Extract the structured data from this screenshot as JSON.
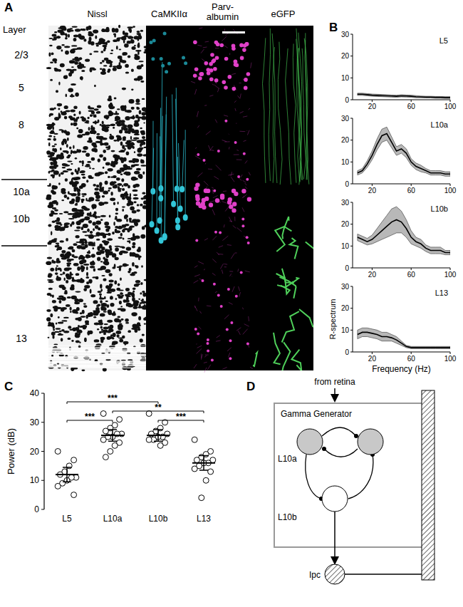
{
  "panel_labels": [
    "A",
    "B",
    "C",
    "D"
  ],
  "histology": {
    "layer_heading": "Layer",
    "stains": [
      "Nissl",
      "CaMKIIα",
      [
        "Parv-",
        "albumin"
      ],
      "eGFP"
    ],
    "layers": [
      "2/3",
      "5",
      "8",
      "10a",
      "10b",
      "13"
    ]
  },
  "chart_data": [
    {
      "type": "line",
      "title": "L5",
      "x": [
        5,
        10,
        15,
        20,
        25,
        30,
        35,
        40,
        45,
        50,
        55,
        60,
        65,
        70,
        75,
        80,
        85,
        90,
        95,
        100
      ],
      "series": [
        {
          "color": "#000000",
          "values": [
            2.5,
            2.5,
            2.3,
            2.1,
            2.0,
            1.9,
            1.8,
            1.7,
            1.6,
            1.8,
            1.7,
            1.6,
            1.4,
            1.3,
            1.2,
            1.2,
            1.1,
            1.1,
            1.0,
            1.0
          ],
          "errors": [
            0.5,
            0.5,
            0.5,
            0.5,
            0.5,
            0.5,
            0.5,
            0.5,
            0.5,
            0.5,
            0.5,
            0.5,
            0.5,
            0.4,
            0.4,
            0.4,
            0.4,
            0.4,
            0.4,
            0.4
          ]
        }
      ],
      "xlim": [
        0,
        100
      ],
      "xticks": [
        20,
        60,
        100
      ],
      "ylim": [
        0,
        30
      ],
      "yticks": [
        0,
        10,
        20,
        30
      ]
    },
    {
      "type": "line",
      "title": "L10a",
      "x": [
        5,
        10,
        15,
        20,
        25,
        30,
        35,
        40,
        45,
        50,
        55,
        60,
        65,
        70,
        75,
        80,
        85,
        90,
        95,
        100
      ],
      "series": [
        {
          "color": "#000000",
          "values": [
            5,
            6,
            9,
            13,
            18,
            22,
            23,
            19,
            15,
            16,
            14,
            10,
            8,
            7,
            6,
            5,
            5,
            5,
            4.5,
            4.5
          ],
          "errors": [
            1,
            1,
            1.5,
            2,
            2.5,
            3,
            3,
            2.5,
            2,
            2,
            2,
            1.5,
            1.5,
            1.5,
            1,
            1,
            1,
            1,
            1,
            1
          ]
        }
      ],
      "xlim": [
        0,
        100
      ],
      "xticks": [
        20,
        60,
        100
      ],
      "ylim": [
        0,
        30
      ],
      "yticks": [
        0,
        10,
        20,
        30
      ]
    },
    {
      "type": "line",
      "title": "L10b",
      "x": [
        5,
        10,
        15,
        20,
        25,
        30,
        35,
        40,
        45,
        50,
        55,
        60,
        65,
        70,
        75,
        80,
        85,
        90,
        95,
        100
      ],
      "series": [
        {
          "color": "#000000",
          "values": [
            14,
            13,
            12,
            13,
            15,
            17,
            19,
            21,
            22,
            21,
            18,
            14,
            12,
            11,
            9,
            8,
            8,
            8,
            7,
            7
          ],
          "errors": [
            1.5,
            1.5,
            1.5,
            2,
            3,
            4,
            5,
            6,
            6,
            5,
            4,
            3,
            2,
            2,
            1.5,
            1.5,
            1.5,
            1.5,
            1,
            1
          ]
        }
      ],
      "xlim": [
        0,
        100
      ],
      "xticks": [
        20,
        60,
        100
      ],
      "ylim": [
        0,
        30
      ],
      "yticks": [
        0,
        10,
        20,
        30
      ]
    },
    {
      "type": "line",
      "title": "L13",
      "x": [
        5,
        10,
        15,
        20,
        25,
        30,
        35,
        40,
        45,
        50,
        55,
        60,
        65,
        70,
        75,
        80,
        85,
        90,
        95,
        100
      ],
      "series": [
        {
          "color": "#000000",
          "values": [
            8,
            9,
            9,
            8.5,
            8,
            7,
            7,
            6.5,
            5.5,
            4,
            2.5,
            2,
            2,
            2,
            2,
            2,
            2,
            2,
            2,
            2
          ],
          "errors": [
            2,
            2,
            2,
            2,
            2,
            2,
            2,
            1.5,
            1.5,
            1,
            0.5,
            0.5,
            0.5,
            0.5,
            0.5,
            0.5,
            0.5,
            0.5,
            0.5,
            0.5
          ]
        }
      ],
      "xlim": [
        0,
        100
      ],
      "xticks": [
        20,
        60,
        100
      ],
      "ylim": [
        0,
        30
      ],
      "yticks": [
        0,
        10,
        20,
        30
      ],
      "xlabel": "Frequency (Hz)",
      "ylabel": "R-spectrum"
    },
    {
      "type": "scatter",
      "categories": [
        "L5",
        "L10a",
        "L10b",
        "L13"
      ],
      "points": [
        [
          20,
          17,
          15,
          13,
          12,
          11,
          11,
          10,
          9,
          8,
          5
        ],
        [
          33,
          31,
          29,
          28,
          27,
          26,
          26,
          25,
          25,
          24,
          23,
          22,
          20,
          18
        ],
        [
          33,
          30,
          28,
          27,
          26,
          26,
          25,
          25,
          24,
          24,
          23,
          22
        ],
        [
          24,
          20,
          19,
          18,
          17,
          17,
          16,
          16,
          15,
          14,
          13,
          10,
          4
        ]
      ],
      "means": [
        12,
        25.5,
        25.5,
        16
      ],
      "errors": [
        2.5,
        2,
        2,
        2.5
      ],
      "ylabel": "Power (dB)",
      "ylim": [
        0,
        40
      ],
      "yticks": [
        0,
        10,
        20,
        30,
        40
      ],
      "annotations": [
        {
          "text": "***",
          "between": [
            "L5",
            "L10a"
          ]
        },
        {
          "text": "***",
          "between": [
            "L10b",
            "L13"
          ]
        },
        {
          "text": "**",
          "between": [
            "L10a",
            "L13"
          ]
        },
        {
          "text": "***",
          "between": [
            "L5",
            "L10b"
          ]
        }
      ]
    }
  ],
  "diagram": {
    "input": "from retina",
    "box": "Gamma Generator",
    "nodes": [
      {
        "label": "L10a"
      },
      {
        "label": "L10b"
      },
      {
        "label": "Ipc"
      }
    ]
  }
}
